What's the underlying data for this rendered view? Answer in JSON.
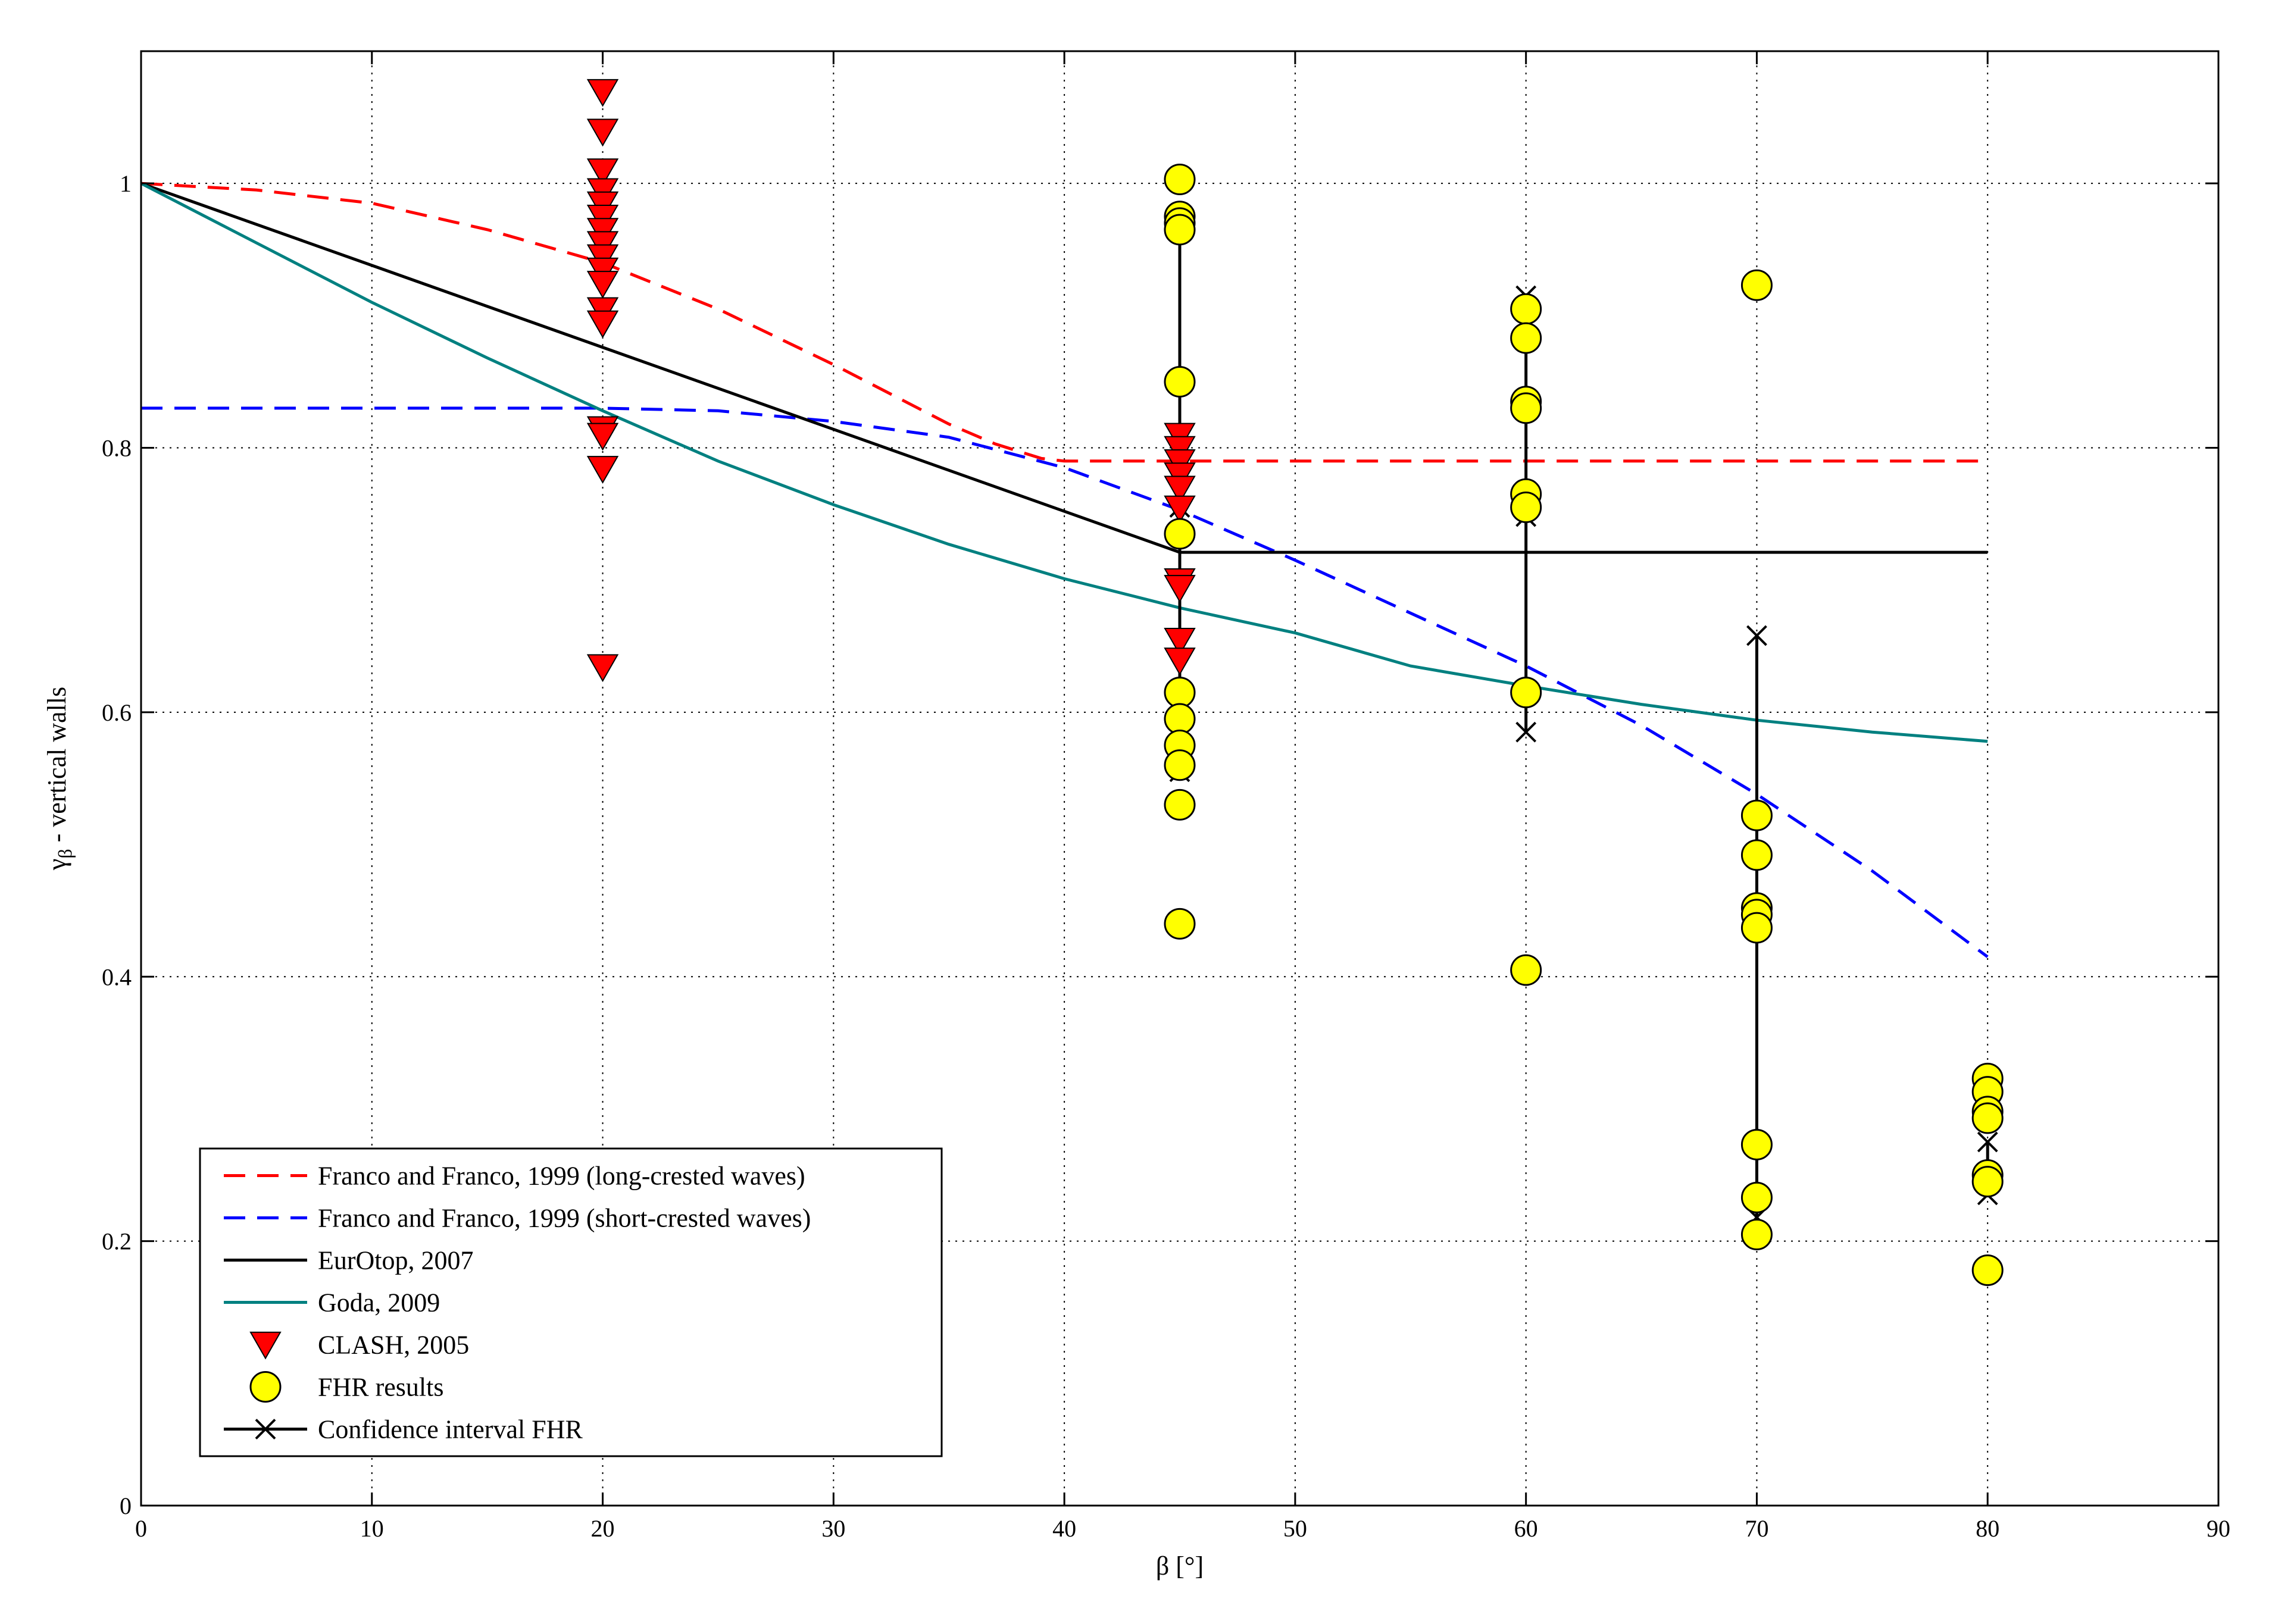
{
  "chart_data": {
    "type": "scatter",
    "title": "",
    "xlabel": "β [°]",
    "ylabel_main": "γ",
    "ylabel_sub": "β",
    "ylabel_rest": " - vertical walls",
    "xlim": [
      0,
      90
    ],
    "ylim": [
      0,
      1.1
    ],
    "xticks": [
      0,
      10,
      20,
      30,
      40,
      50,
      60,
      70,
      80,
      90
    ],
    "yticks": [
      0,
      0.2,
      0.4,
      0.6,
      0.8,
      1
    ],
    "xtick_labels": [
      "0",
      "10",
      "20",
      "30",
      "40",
      "50",
      "60",
      "70",
      "80",
      "90"
    ],
    "ytick_labels": [
      "0",
      "0.2",
      "0.4",
      "0.6",
      "0.8",
      "1"
    ],
    "grid": true,
    "legend_position": "bottom-left",
    "colors": {
      "franco_long": "#ff0000",
      "franco_short": "#0000ff",
      "eurotop": "#000000",
      "goda": "#008080",
      "clash": "#ff0000",
      "fhr": "#ffff00",
      "ci": "#000000"
    },
    "series": [
      {
        "name": "Franco and Franco, 1999 (long-crested waves)",
        "kind": "line",
        "style": "dashed",
        "color": "#ff0000",
        "x": [
          0,
          5,
          10,
          15,
          20,
          25,
          30,
          35,
          37,
          39,
          40,
          45,
          50,
          60,
          70,
          80
        ],
        "y": [
          1.0,
          0.995,
          0.985,
          0.965,
          0.94,
          0.905,
          0.863,
          0.818,
          0.803,
          0.792,
          0.79,
          0.79,
          0.79,
          0.79,
          0.79,
          0.79
        ]
      },
      {
        "name": "Franco and Franco, 1999 (short-crested waves)",
        "kind": "line",
        "style": "dashed",
        "color": "#0000ff",
        "x": [
          0,
          10,
          20,
          25,
          30,
          35,
          40,
          45,
          50,
          55,
          60,
          65,
          70,
          75,
          80
        ],
        "y": [
          0.83,
          0.83,
          0.83,
          0.828,
          0.82,
          0.808,
          0.785,
          0.753,
          0.715,
          0.675,
          0.635,
          0.59,
          0.538,
          0.48,
          0.415
        ]
      },
      {
        "name": "EurOtop, 2007",
        "kind": "line",
        "style": "solid",
        "color": "#000000",
        "x": [
          0,
          45,
          45,
          80
        ],
        "y": [
          1.0,
          0.721,
          0.721,
          0.721
        ]
      },
      {
        "name": "Goda, 2009",
        "kind": "line",
        "style": "solid",
        "color": "#008080",
        "x": [
          0,
          5,
          10,
          15,
          20,
          25,
          30,
          35,
          40,
          45,
          50,
          55,
          60,
          65,
          70,
          75,
          80
        ],
        "y": [
          1.0,
          0.955,
          0.91,
          0.868,
          0.828,
          0.79,
          0.757,
          0.727,
          0.701,
          0.679,
          0.66,
          0.635,
          0.62,
          0.606,
          0.594,
          0.585,
          0.578
        ]
      },
      {
        "name": "CLASH, 2005",
        "kind": "marker",
        "marker": "triangle-down",
        "color": "#ff0000",
        "points": [
          [
            20,
            1.07
          ],
          [
            20,
            1.04
          ],
          [
            20,
            1.01
          ],
          [
            20,
            0.995
          ],
          [
            20,
            0.985
          ],
          [
            20,
            0.975
          ],
          [
            20,
            0.965
          ],
          [
            20,
            0.955
          ],
          [
            20,
            0.945
          ],
          [
            20,
            0.935
          ],
          [
            20,
            0.925
          ],
          [
            20,
            0.905
          ],
          [
            20,
            0.895
          ],
          [
            20,
            0.815
          ],
          [
            20,
            0.81
          ],
          [
            20,
            0.785
          ],
          [
            20,
            0.635
          ],
          [
            45,
            0.81
          ],
          [
            45,
            0.8
          ],
          [
            45,
            0.79
          ],
          [
            45,
            0.78
          ],
          [
            45,
            0.77
          ],
          [
            45,
            0.755
          ],
          [
            45,
            0.7
          ],
          [
            45,
            0.695
          ],
          [
            45,
            0.655
          ],
          [
            45,
            0.64
          ]
        ]
      },
      {
        "name": "FHR results",
        "kind": "marker",
        "marker": "circle",
        "color": "#ffff00",
        "points": [
          [
            45,
            1.003
          ],
          [
            45,
            0.975
          ],
          [
            45,
            0.97
          ],
          [
            45,
            0.965
          ],
          [
            45,
            0.85
          ],
          [
            45,
            0.735
          ],
          [
            45,
            0.615
          ],
          [
            45,
            0.595
          ],
          [
            45,
            0.575
          ],
          [
            45,
            0.56
          ],
          [
            45,
            0.53
          ],
          [
            45,
            0.44
          ],
          [
            60,
            0.905
          ],
          [
            60,
            0.883
          ],
          [
            60,
            0.835
          ],
          [
            60,
            0.83
          ],
          [
            60,
            0.765
          ],
          [
            60,
            0.755
          ],
          [
            60,
            0.615
          ],
          [
            60,
            0.405
          ],
          [
            70,
            0.923
          ],
          [
            70,
            0.522
          ],
          [
            70,
            0.492
          ],
          [
            70,
            0.452
          ],
          [
            70,
            0.447
          ],
          [
            70,
            0.437
          ],
          [
            70,
            0.273
          ],
          [
            70,
            0.233
          ],
          [
            70,
            0.205
          ],
          [
            80,
            0.323
          ],
          [
            80,
            0.313
          ],
          [
            80,
            0.298
          ],
          [
            80,
            0.293
          ],
          [
            80,
            0.25
          ],
          [
            80,
            0.245
          ],
          [
            80,
            0.178
          ]
        ]
      },
      {
        "name": "Confidence interval FHR",
        "kind": "errorbar",
        "marker": "x",
        "color": "#000000",
        "intervals": [
          {
            "x": 45,
            "low": 0.555,
            "high": 0.975,
            "extra": [
              0.755
            ]
          },
          {
            "x": 60,
            "low": 0.585,
            "high": 0.915,
            "extra": [
              0.748
            ]
          },
          {
            "x": 70,
            "low": 0.218,
            "high": 0.658,
            "extra": []
          },
          {
            "x": 80,
            "low": 0.235,
            "high": 0.275,
            "extra": []
          }
        ]
      }
    ]
  }
}
